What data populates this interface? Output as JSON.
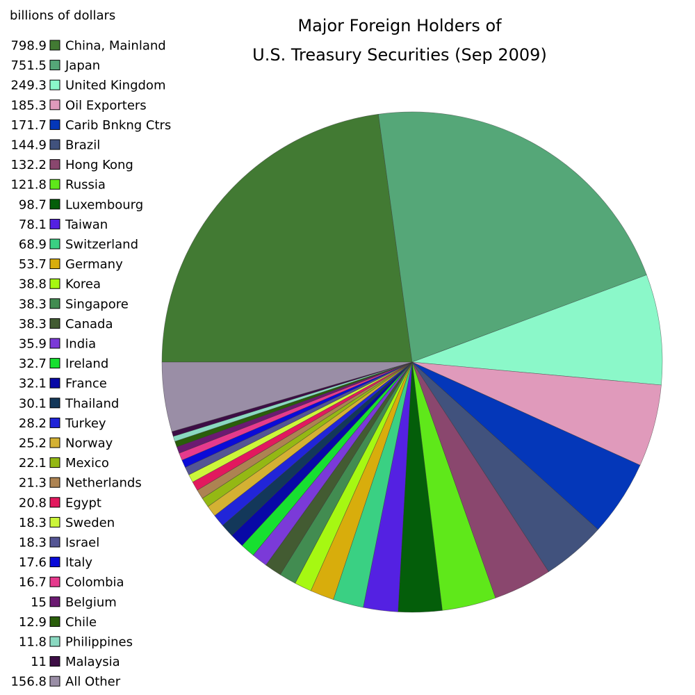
{
  "chart_data": {
    "type": "pie",
    "title_line1": "Major Foreign Holders of",
    "title_line2": "U.S. Treasury Securities (Sep 2009)",
    "units_label": "billions of dollars",
    "legend_placement": "left",
    "slices": [
      {
        "label": "China, Mainland",
        "value": 798.9,
        "value_text": "798.9",
        "color": "#427a33"
      },
      {
        "label": "Japan",
        "value": 751.5,
        "value_text": "751.5",
        "color": "#55a778"
      },
      {
        "label": "United Kingdom",
        "value": 249.3,
        "value_text": "249.3",
        "color": "#8bf8c9"
      },
      {
        "label": "Oil Exporters",
        "value": 185.3,
        "value_text": "185.3",
        "color": "#e09abb"
      },
      {
        "label": "Carib Bnkng Ctrs",
        "value": 171.7,
        "value_text": "171.7",
        "color": "#0437b9"
      },
      {
        "label": "Brazil",
        "value": 144.9,
        "value_text": "144.9",
        "color": "#41527d"
      },
      {
        "label": "Hong Kong",
        "value": 132.2,
        "value_text": "132.2",
        "color": "#8a476e"
      },
      {
        "label": "Russia",
        "value": 121.8,
        "value_text": "121.8",
        "color": "#5fe81a"
      },
      {
        "label": "Luxembourg",
        "value": 98.7,
        "value_text": "98.7",
        "color": "#045e0a"
      },
      {
        "label": "Taiwan",
        "value": 78.1,
        "value_text": "78.1",
        "color": "#5421e2"
      },
      {
        "label": "Switzerland",
        "value": 68.9,
        "value_text": "68.9",
        "color": "#3ad083"
      },
      {
        "label": "Germany",
        "value": 53.7,
        "value_text": "53.7",
        "color": "#d8ad0c"
      },
      {
        "label": "Korea",
        "value": 38.8,
        "value_text": "38.8",
        "color": "#a6f812"
      },
      {
        "label": "Singapore",
        "value": 38.3,
        "value_text": "38.3",
        "color": "#428c51"
      },
      {
        "label": "Canada",
        "value": 38.3,
        "value_text": "38.3",
        "color": "#435b32"
      },
      {
        "label": "India",
        "value": 35.9,
        "value_text": "35.9",
        "color": "#7b3ad8"
      },
      {
        "label": "Ireland",
        "value": 32.7,
        "value_text": "32.7",
        "color": "#17e030"
      },
      {
        "label": "France",
        "value": 32.1,
        "value_text": "32.1",
        "color": "#0809a6"
      },
      {
        "label": "Thailand",
        "value": 30.1,
        "value_text": "30.1",
        "color": "#13385a"
      },
      {
        "label": "Turkey",
        "value": 28.2,
        "value_text": "28.2",
        "color": "#2125d8"
      },
      {
        "label": "Norway",
        "value": 25.2,
        "value_text": "25.2",
        "color": "#d4b133"
      },
      {
        "label": "Mexico",
        "value": 22.1,
        "value_text": "22.1",
        "color": "#94b814"
      },
      {
        "label": "Netherlands",
        "value": 21.3,
        "value_text": "21.3",
        "color": "#ad8352"
      },
      {
        "label": "Egypt",
        "value": 20.8,
        "value_text": "20.8",
        "color": "#e2195e"
      },
      {
        "label": "Sweden",
        "value": 18.3,
        "value_text": "18.3",
        "color": "#ccf63a"
      },
      {
        "label": "Israel",
        "value": 18.3,
        "value_text": "18.3",
        "color": "#545594"
      },
      {
        "label": "Italy",
        "value": 17.6,
        "value_text": "17.6",
        "color": "#0a0bd8"
      },
      {
        "label": "Colombia",
        "value": 16.7,
        "value_text": "16.7",
        "color": "#e63a8d"
      },
      {
        "label": "Belgium",
        "value": 15,
        "value_text": "15",
        "color": "#6b1a71"
      },
      {
        "label": "Chile",
        "value": 12.9,
        "value_text": "12.9",
        "color": "#2a5e0b"
      },
      {
        "label": "Philippines",
        "value": 11.8,
        "value_text": "11.8",
        "color": "#8ad9c1"
      },
      {
        "label": "Malaysia",
        "value": 11,
        "value_text": "11",
        "color": "#3d0d45"
      },
      {
        "label": "All Other",
        "value": 156.8,
        "value_text": "156.8",
        "color": "#9a8ea6"
      }
    ]
  }
}
